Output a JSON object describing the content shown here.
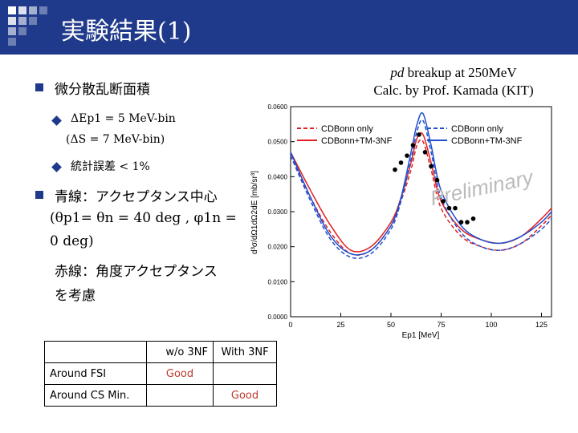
{
  "header": {
    "title": "実験結果(1)"
  },
  "caption": {
    "line1_italic": "pd",
    "line1_rest": " breakup at 250MeV",
    "line2": "Calc. by Prof. Kamada (KIT)"
  },
  "left": {
    "bullet1": "微分散乱断面積",
    "sub1a": "ΔEp1 = 5 MeV-bin",
    "sub1b": "(ΔS = 7 MeV-bin)",
    "sub2": "統計誤差 < 1%",
    "bullet2": "青線：アクセプタンス中心",
    "bullet2_line2": "(θp1= θn = 40 deg , φ1n =",
    "bullet2_line3": "0 deg)",
    "red_line1": "赤線：角度アクセプタンス",
    "red_line2": "を考慮"
  },
  "table": {
    "headers": [
      "",
      "w/o 3NF",
      "With 3NF"
    ],
    "rows": [
      [
        "Around FSI",
        "Good",
        ""
      ],
      [
        "Around CS Min.",
        "",
        "Good"
      ]
    ]
  },
  "chart_data": {
    "type": "line",
    "xlabel": "Ep1 [MeV]",
    "ylabel": "d³σ/dΩ1dΩ2dE [mb/sr³]",
    "xlim": [
      0,
      130
    ],
    "ylim": [
      0,
      0.06
    ],
    "xticks": [
      "0",
      "25",
      "50",
      "75",
      "100",
      "125"
    ],
    "yticks": [
      "0.0000",
      "0.0100",
      "0.0200",
      "0.0300",
      "0.0400",
      "0.0500",
      "0.0600"
    ],
    "watermark": "Preliminary",
    "legend": [
      "CDBonn only",
      "CDBonn+TM-3NF",
      "CDBonn only",
      "CDBonn+TM-3NF"
    ],
    "colors": {
      "red": "#e02020",
      "blue": "#1f4fd0",
      "axis": "#000000"
    },
    "series": [
      {
        "name": "CDBonn only (red)",
        "color": "red",
        "dash": true,
        "x": [
          0,
          10,
          20,
          30,
          40,
          50,
          55,
          60,
          63,
          66,
          70,
          75,
          85,
          95,
          105,
          115,
          125,
          130
        ],
        "y": [
          0.046,
          0.034,
          0.024,
          0.018,
          0.019,
          0.026,
          0.033,
          0.042,
          0.049,
          0.05,
          0.042,
          0.031,
          0.023,
          0.02,
          0.019,
          0.021,
          0.026,
          0.029
        ]
      },
      {
        "name": "CDBonn+TM-3NF (red)",
        "color": "red",
        "dash": false,
        "x": [
          0,
          10,
          20,
          30,
          40,
          50,
          55,
          60,
          63,
          66,
          70,
          75,
          85,
          95,
          105,
          115,
          125,
          130
        ],
        "y": [
          0.047,
          0.036,
          0.026,
          0.019,
          0.02,
          0.027,
          0.034,
          0.044,
          0.051,
          0.052,
          0.044,
          0.033,
          0.025,
          0.022,
          0.021,
          0.023,
          0.028,
          0.031
        ]
      },
      {
        "name": "CDBonn only (blue)",
        "color": "blue",
        "dash": true,
        "x": [
          0,
          10,
          20,
          30,
          40,
          50,
          55,
          60,
          63,
          66,
          70,
          75,
          85,
          95,
          105,
          115,
          125,
          130
        ],
        "y": [
          0.046,
          0.033,
          0.022,
          0.017,
          0.018,
          0.025,
          0.033,
          0.045,
          0.053,
          0.056,
          0.047,
          0.034,
          0.024,
          0.02,
          0.019,
          0.021,
          0.025,
          0.028
        ]
      },
      {
        "name": "CDBonn+TM-3NF (blue)",
        "color": "blue",
        "dash": false,
        "x": [
          0,
          10,
          20,
          30,
          40,
          50,
          55,
          60,
          63,
          66,
          70,
          75,
          85,
          95,
          105,
          115,
          125,
          130
        ],
        "y": [
          0.047,
          0.034,
          0.023,
          0.018,
          0.019,
          0.026,
          0.034,
          0.047,
          0.055,
          0.058,
          0.049,
          0.036,
          0.026,
          0.022,
          0.021,
          0.023,
          0.027,
          0.03
        ]
      },
      {
        "name": "Data",
        "color": "black",
        "type": "scatter",
        "x": [
          52,
          55,
          58,
          61,
          64,
          67,
          70,
          73,
          76,
          79,
          82,
          85,
          88,
          91
        ],
        "y": [
          0.042,
          0.044,
          0.046,
          0.049,
          0.052,
          0.047,
          0.043,
          0.039,
          0.033,
          0.031,
          0.031,
          0.027,
          0.027,
          0.028
        ]
      }
    ]
  }
}
